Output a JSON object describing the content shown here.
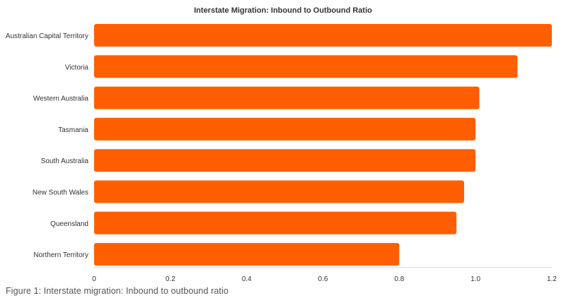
{
  "chart_data": {
    "type": "bar",
    "orientation": "horizontal",
    "title": "Interstate Migration: Inbound to Outbound Ratio",
    "categories": [
      "Australian Capital Territory",
      "Victoria",
      "Western Australia",
      "Tasmania",
      "South Australia",
      "New South Wales",
      "Queensland",
      "Northern Territory"
    ],
    "values": [
      1.2,
      1.11,
      1.01,
      1.0,
      1.0,
      0.97,
      0.95,
      0.8
    ],
    "xlim": [
      0,
      1.2
    ],
    "xticks": [
      "0",
      "0.2",
      "0.4",
      "0.6",
      "0.8",
      "1.0",
      "1.2"
    ],
    "xlabel": "",
    "ylabel": "",
    "grid": false,
    "legend": "none",
    "bar_color": "#ff5f00"
  },
  "caption": "Figure 1: Interstate migration: Inbound to outbound ratio"
}
